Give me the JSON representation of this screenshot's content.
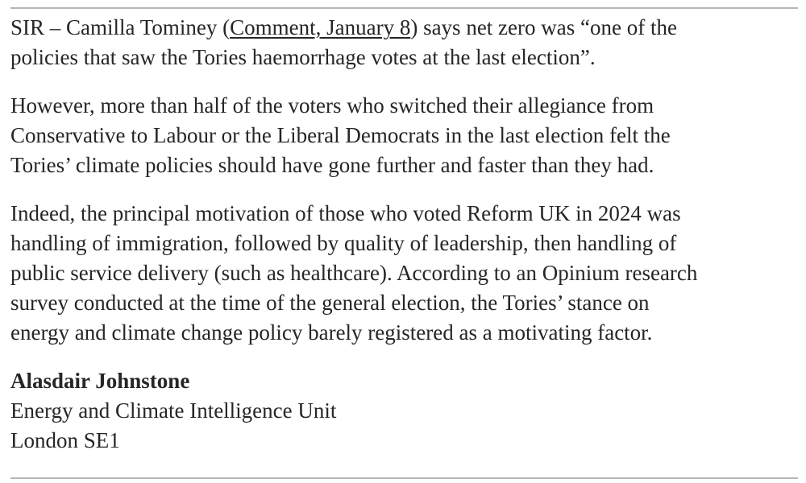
{
  "letter": {
    "line1_before": "SIR – Camilla Tominey (",
    "link": "Comment, January 8",
    "line1_after": ") says net zero was “one of the",
    "para1_rest": [
      "policies that saw the Tories haemorrhage votes at the last election”."
    ],
    "para2": [
      "However, more than half of the voters who switched their allegiance from",
      "Conservative to Labour or the Liberal Democrats in the last election felt the",
      "Tories’ climate policies should have gone further and faster than they had."
    ],
    "para3": [
      "Indeed, the principal motivation of those who voted Reform UK in 2024 was",
      "handling of immigration, followed by quality of leadership, then handling of",
      "public service delivery (such as healthcare). According to an Opinium research",
      "survey conducted at the time of the general election, the Tories’ stance on",
      "energy and climate change policy barely registered as a motivating factor."
    ],
    "signature": {
      "name": "Alasdair Johnstone",
      "organisation": "Energy and Climate Intelligence Unit",
      "location": "London SE1"
    }
  }
}
